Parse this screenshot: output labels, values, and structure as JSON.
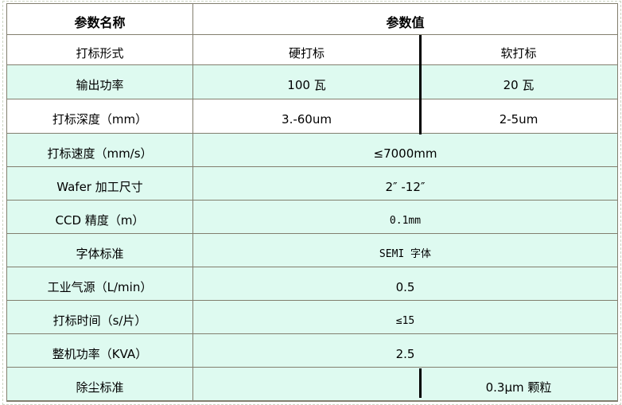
{
  "colors": {
    "row_highlight": "#defaf0",
    "border": "#827e6e",
    "divider": "#000000"
  },
  "table": {
    "header": {
      "name_col": "参数名称",
      "value_col": "参数值"
    },
    "rows": [
      {
        "label": "打标形式",
        "split": true,
        "values": [
          "硬打标",
          "软打标"
        ],
        "bg": "white",
        "mono": false
      },
      {
        "label": "输出功率",
        "split": true,
        "values": [
          "100 瓦",
          "20 瓦"
        ],
        "bg": "mint",
        "mono": false
      },
      {
        "label": "打标深度（mm）",
        "split": true,
        "values": [
          "3.-60um",
          "2-5um"
        ],
        "bg": "white",
        "mono": false
      },
      {
        "label": "打标速度（mm/s）",
        "split": false,
        "values": [
          "≤7000mm"
        ],
        "bg": "mint",
        "mono": false
      },
      {
        "label": "Wafer 加工尺寸",
        "split": false,
        "values": [
          "2″ -12″"
        ],
        "bg": "mint",
        "mono": false
      },
      {
        "label": "CCD 精度（m）",
        "split": false,
        "values": [
          "0.1mm"
        ],
        "bg": "mint",
        "mono": true
      },
      {
        "label": "字体标准",
        "split": false,
        "values": [
          "SEMI 字体"
        ],
        "bg": "mint",
        "mono": true
      },
      {
        "label": "工业气源（L/min）",
        "split": false,
        "values": [
          "0.5"
        ],
        "bg": "mint",
        "mono": false
      },
      {
        "label": "打标时间（s/片）",
        "split": false,
        "values": [
          "≤15"
        ],
        "bg": "mint",
        "mono": true
      },
      {
        "label": "整机功率（KVA）",
        "split": false,
        "values": [
          "2.5"
        ],
        "bg": "mint",
        "mono": false
      },
      {
        "label": "除尘标准",
        "split": true,
        "values": [
          "",
          "0.3μm 颗粒"
        ],
        "bg": "mint",
        "mono": false,
        "divider_partial": true
      }
    ]
  }
}
